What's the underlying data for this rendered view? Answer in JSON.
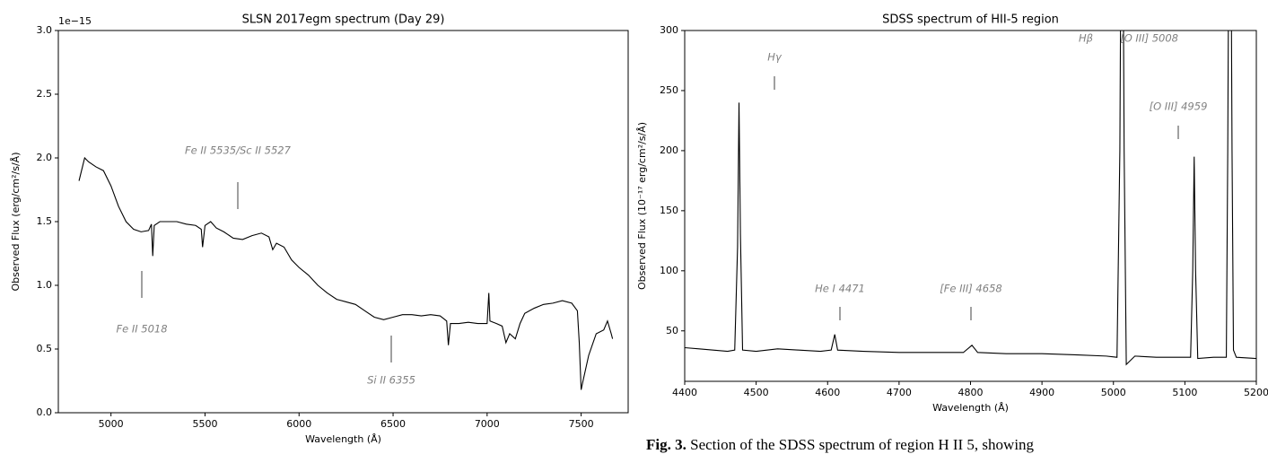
{
  "chart_data": [
    {
      "type": "line",
      "title": "SLSN 2017egm spectrum (Day 29)",
      "x_label": "Wavelength (Å)",
      "y_label": "Observed Flux (erg/cm²/s/Å)",
      "offset_label": "1e−15",
      "color": "#000000",
      "x": [
        4830,
        4860,
        4880,
        4920,
        4960,
        5000,
        5040,
        5080,
        5120,
        5160,
        5200,
        5215,
        5222,
        5230,
        5260,
        5300,
        5350,
        5400,
        5450,
        5480,
        5487,
        5500,
        5530,
        5560,
        5600,
        5650,
        5700,
        5750,
        5800,
        5840,
        5860,
        5880,
        5920,
        5960,
        6000,
        6050,
        6100,
        6150,
        6200,
        6250,
        6300,
        6350,
        6400,
        6450,
        6500,
        6550,
        6600,
        6650,
        6700,
        6750,
        6785,
        6794,
        6805,
        6850,
        6900,
        6950,
        7000,
        7009,
        7015,
        7050,
        7080,
        7100,
        7120,
        7150,
        7175,
        7200,
        7250,
        7300,
        7350,
        7400,
        7450,
        7480,
        7490,
        7500,
        7510,
        7540,
        7580,
        7620,
        7640,
        7660,
        7667
      ],
      "values": [
        1.82,
        2.0,
        1.97,
        1.93,
        1.9,
        1.78,
        1.62,
        1.5,
        1.44,
        1.42,
        1.43,
        1.48,
        1.23,
        1.47,
        1.5,
        1.5,
        1.5,
        1.48,
        1.47,
        1.44,
        1.3,
        1.47,
        1.5,
        1.45,
        1.42,
        1.37,
        1.36,
        1.39,
        1.41,
        1.38,
        1.28,
        1.33,
        1.3,
        1.2,
        1.14,
        1.08,
        1.0,
        0.94,
        0.89,
        0.87,
        0.85,
        0.8,
        0.75,
        0.73,
        0.75,
        0.77,
        0.77,
        0.76,
        0.77,
        0.76,
        0.72,
        0.53,
        0.7,
        0.7,
        0.71,
        0.7,
        0.7,
        0.94,
        0.72,
        0.7,
        0.68,
        0.55,
        0.62,
        0.58,
        0.7,
        0.78,
        0.82,
        0.85,
        0.86,
        0.88,
        0.86,
        0.8,
        0.55,
        0.18,
        0.25,
        0.45,
        0.62,
        0.65,
        0.72,
        0.62,
        0.58
      ],
      "xlim": [
        4720,
        7750
      ],
      "xticks": [
        5000,
        5500,
        6000,
        6500,
        7000,
        7500
      ],
      "ylim": [
        0,
        3
      ],
      "yticks": [
        {
          "value": 0,
          "label": "0.0"
        },
        0.5,
        {
          "value": 1,
          "label": "1.0"
        },
        1.5,
        {
          "value": 2,
          "label": "2.0"
        },
        2.5,
        {
          "value": 3,
          "label": "3.0"
        }
      ],
      "annotations": [
        "Fe II 5535/Sc II 5527",
        "Fe II 5018",
        "Si II 6355"
      ]
    },
    {
      "type": "line",
      "title": "SDSS spectrum of HII-5 region",
      "x_label": "Wavelength (Å)",
      "y_label": "Observed Flux (10⁻¹⁷ erg/cm²/s/Å)",
      "color": "#000000",
      "x": [
        4400,
        4420,
        4440,
        4460,
        4470,
        4474,
        4476,
        4478,
        4481,
        4500,
        4530,
        4560,
        4590,
        4605,
        4610,
        4614,
        4650,
        4700,
        4750,
        4790,
        4802,
        4810,
        4850,
        4900,
        4950,
        4990,
        5005,
        5009,
        5012,
        5015,
        5018,
        5030,
        5060,
        5090,
        5108,
        5111,
        5113,
        5115,
        5118,
        5140,
        5158,
        5160,
        5163,
        5166,
        5168,
        5172,
        5200
      ],
      "values": [
        36,
        35,
        34,
        33,
        34,
        120,
        240,
        130,
        34,
        33,
        35,
        34,
        33,
        34,
        47,
        34,
        33,
        32,
        32,
        32,
        38,
        32,
        31,
        31,
        30,
        29,
        28,
        200,
        550,
        200,
        22,
        29,
        28,
        28,
        28,
        100,
        195,
        100,
        27,
        28,
        28,
        200,
        580,
        200,
        34,
        28,
        27
      ],
      "xlim": [
        4400,
        5200
      ],
      "xticks": [
        4400,
        4500,
        4600,
        4700,
        4800,
        4900,
        5000,
        5100,
        5200
      ],
      "ylim": [
        8,
        300
      ],
      "yticks": [
        50,
        100,
        150,
        200,
        250,
        300
      ],
      "annotations": [
        "Hγ",
        "He I 4471",
        "[Fe III] 4658",
        "Hβ",
        "[O III] 5008",
        "[O III] 4959"
      ]
    }
  ],
  "caption": {
    "label": "Fig. 3.",
    "text": "Section of the SDSS spectrum of region H II 5, showing"
  }
}
